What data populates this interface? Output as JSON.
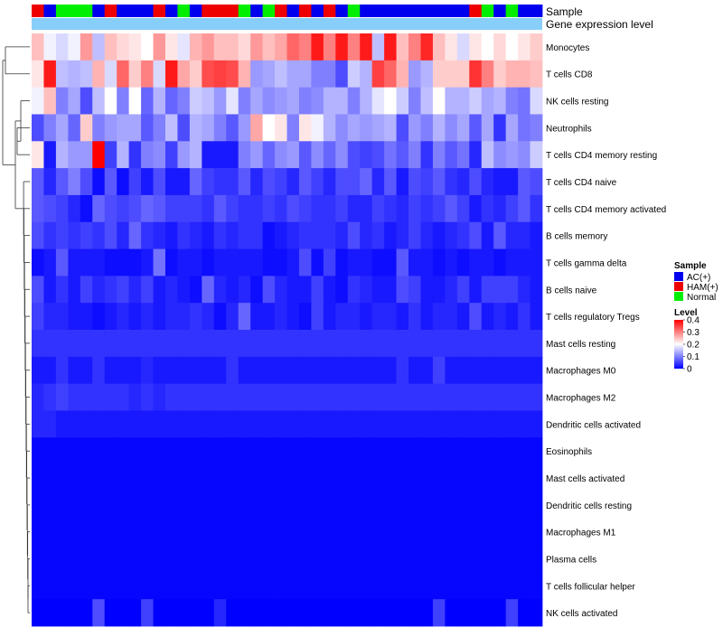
{
  "chart_data": {
    "type": "heatmap",
    "title": "",
    "annotation_labels": [
      "Sample",
      "Gene expression level"
    ],
    "gene_expression_level": "uniform",
    "samples": [
      "HAM(+)",
      "AC(+)",
      "Normal",
      "Normal",
      "Normal",
      "AC(+)",
      "HAM(+)",
      "AC(+)",
      "AC(+)",
      "AC(+)",
      "HAM(+)",
      "AC(+)",
      "Normal",
      "AC(+)",
      "HAM(+)",
      "HAM(+)",
      "HAM(+)",
      "Normal",
      "AC(+)",
      "Normal",
      "HAM(+)",
      "AC(+)",
      "HAM(+)",
      "AC(+)",
      "HAM(+)",
      "AC(+)",
      "Normal",
      "AC(+)",
      "AC(+)",
      "AC(+)",
      "AC(+)",
      "AC(+)",
      "AC(+)",
      "AC(+)",
      "AC(+)",
      "AC(+)",
      "HAM(+)",
      "Normal",
      "AC(+)",
      "Normal",
      "AC(+)",
      "AC(+)"
    ],
    "rows": [
      {
        "name": "Monocytes",
        "values": [
          0.25,
          0.19,
          0.17,
          0.19,
          0.28,
          0.15,
          0.25,
          0.23,
          0.22,
          0.2,
          0.28,
          0.22,
          0.18,
          0.26,
          0.28,
          0.25,
          0.25,
          0.23,
          0.28,
          0.25,
          0.27,
          0.32,
          0.3,
          0.38,
          0.3,
          0.38,
          0.3,
          0.38,
          0.15,
          0.38,
          0.25,
          0.3,
          0.37,
          0.25,
          0.22,
          0.17,
          0.22,
          0.2,
          0.23,
          0.2,
          0.22,
          0.24
        ]
      },
      {
        "name": "T cells CD8",
        "values": [
          0.22,
          0.38,
          0.15,
          0.14,
          0.15,
          0.26,
          0.17,
          0.32,
          0.24,
          0.3,
          0.17,
          0.38,
          0.27,
          0.24,
          0.34,
          0.35,
          0.34,
          0.26,
          0.12,
          0.13,
          0.15,
          0.13,
          0.13,
          0.1,
          0.1,
          0.06,
          0.16,
          0.14,
          0.35,
          0.32,
          0.26,
          0.12,
          0.14,
          0.24,
          0.24,
          0.24,
          0.36,
          0.3,
          0.24,
          0.26,
          0.26,
          0.25
        ]
      },
      {
        "name": "NK cells resting",
        "values": [
          0.19,
          0.25,
          0.1,
          0.13,
          0.06,
          0.15,
          0.2,
          0.1,
          0.2,
          0.08,
          0.14,
          0.08,
          0.1,
          0.16,
          0.15,
          0.12,
          0.18,
          0.1,
          0.13,
          0.11,
          0.12,
          0.13,
          0.1,
          0.11,
          0.14,
          0.14,
          0.1,
          0.14,
          0.18,
          0.2,
          0.16,
          0.1,
          0.15,
          0.2,
          0.14,
          0.14,
          0.16,
          0.13,
          0.14,
          0.1,
          0.09,
          0.17
        ]
      },
      {
        "name": "Neutrophils",
        "values": [
          0.06,
          0.1,
          0.13,
          0.08,
          0.24,
          0.1,
          0.12,
          0.13,
          0.13,
          0.07,
          0.1,
          0.15,
          0.06,
          0.14,
          0.13,
          0.1,
          0.07,
          0.12,
          0.27,
          0.2,
          0.22,
          0.1,
          0.22,
          0.19,
          0.14,
          0.11,
          0.13,
          0.12,
          0.13,
          0.14,
          0.06,
          0.12,
          0.1,
          0.14,
          0.11,
          0.13,
          0.07,
          0.13,
          0.04,
          0.13,
          0.09,
          0.1
        ]
      },
      {
        "name": "T cells CD4 memory resting",
        "values": [
          0.22,
          0.02,
          0.14,
          0.12,
          0.12,
          0.4,
          0.05,
          0.14,
          0.04,
          0.1,
          0.11,
          0.05,
          0.12,
          0.14,
          0.02,
          0.02,
          0.02,
          0.1,
          0.12,
          0.08,
          0.11,
          0.12,
          0.07,
          0.11,
          0.08,
          0.11,
          0.06,
          0.05,
          0.06,
          0.09,
          0.07,
          0.1,
          0.04,
          0.1,
          0.07,
          0.09,
          0.03,
          0.15,
          0.11,
          0.12,
          0.11,
          0.16
        ]
      },
      {
        "name": "T cells CD4 naive",
        "values": [
          0.07,
          0.03,
          0.07,
          0.1,
          0.06,
          0.01,
          0.07,
          0.01,
          0.05,
          0.02,
          0.06,
          0.02,
          0.02,
          0.08,
          0.05,
          0.04,
          0.04,
          0.07,
          0.03,
          0.06,
          0.05,
          0.03,
          0.07,
          0.05,
          0.03,
          0.06,
          0.06,
          0.08,
          0.03,
          0.07,
          0.02,
          0.06,
          0.05,
          0.07,
          0.04,
          0.03,
          0.06,
          0.03,
          0.02,
          0.02,
          0.07,
          0.06
        ]
      },
      {
        "name": "T cells CD4 memory activated",
        "values": [
          0.07,
          0.06,
          0.05,
          0.03,
          0.01,
          0.08,
          0.06,
          0.05,
          0.06,
          0.08,
          0.07,
          0.05,
          0.05,
          0.05,
          0.04,
          0.07,
          0.05,
          0.04,
          0.04,
          0.05,
          0.04,
          0.06,
          0.05,
          0.04,
          0.04,
          0.05,
          0.03,
          0.03,
          0.05,
          0.04,
          0.03,
          0.05,
          0.04,
          0.05,
          0.07,
          0.05,
          0.02,
          0.04,
          0.03,
          0.05,
          0.07,
          0.04
        ]
      },
      {
        "name": "B cells memory",
        "values": [
          0.06,
          0.04,
          0.05,
          0.04,
          0.05,
          0.04,
          0.06,
          0.03,
          0.08,
          0.04,
          0.03,
          0.02,
          0.04,
          0.03,
          0.02,
          0.04,
          0.03,
          0.04,
          0.04,
          0.01,
          0.02,
          0.03,
          0.04,
          0.04,
          0.04,
          0.03,
          0.06,
          0.03,
          0.04,
          0.02,
          0.03,
          0.05,
          0.03,
          0.02,
          0.03,
          0.04,
          0.06,
          0.02,
          0.07,
          0.03,
          0.03,
          0.02
        ]
      },
      {
        "name": "T cells gamma delta",
        "values": [
          0.01,
          0.02,
          0.07,
          0.02,
          0.02,
          0.02,
          0.01,
          0.01,
          0.01,
          0.02,
          0.09,
          0.01,
          0.02,
          0.02,
          0.01,
          0.02,
          0.02,
          0.02,
          0.02,
          0.01,
          0.01,
          0.02,
          0.06,
          0.01,
          0.05,
          0.01,
          0.02,
          0.02,
          0.01,
          0.01,
          0.07,
          0.02,
          0.02,
          0.01,
          0.02,
          0.01,
          0.02,
          0.02,
          0.01,
          0.02,
          0.02,
          0.02
        ]
      },
      {
        "name": "B cells naive",
        "values": [
          0.06,
          0.02,
          0.04,
          0.02,
          0.05,
          0.03,
          0.04,
          0.05,
          0.03,
          0.05,
          0.02,
          0.03,
          0.02,
          0.01,
          0.08,
          0.03,
          0.02,
          0.03,
          0.01,
          0.06,
          0.03,
          0.02,
          0.02,
          0.05,
          0.02,
          0.01,
          0.04,
          0.03,
          0.02,
          0.02,
          0.06,
          0.05,
          0.02,
          0.02,
          0.03,
          0.05,
          0.02,
          0.05,
          0.05,
          0.05,
          0.03,
          0.02
        ]
      },
      {
        "name": "T cells regulatory  Tregs",
        "values": [
          0.05,
          0.03,
          0.03,
          0.02,
          0.02,
          0.01,
          0.02,
          0.03,
          0.02,
          0.03,
          0.02,
          0.03,
          0.03,
          0.04,
          0.03,
          0.01,
          0.03,
          0.08,
          0.02,
          0.02,
          0.03,
          0.02,
          0.01,
          0.05,
          0.02,
          0.03,
          0.03,
          0.02,
          0.03,
          0.03,
          0.02,
          0.04,
          0.02,
          0.03,
          0.03,
          0.02,
          0.06,
          0.02,
          0.03,
          0.02,
          0.04,
          0.02
        ]
      },
      {
        "name": "Mast cells resting",
        "values": [
          0.04,
          0.04,
          0.04,
          0.04,
          0.04,
          0.04,
          0.04,
          0.04,
          0.04,
          0.04,
          0.04,
          0.04,
          0.04,
          0.04,
          0.04,
          0.04,
          0.04,
          0.04,
          0.04,
          0.04,
          0.04,
          0.04,
          0.04,
          0.04,
          0.04,
          0.04,
          0.04,
          0.04,
          0.04,
          0.04,
          0.04,
          0.04,
          0.04,
          0.04,
          0.04,
          0.04,
          0.04,
          0.04,
          0.04,
          0.04,
          0.04,
          0.04
        ]
      },
      {
        "name": "Macrophages M0",
        "values": [
          0.02,
          0.02,
          0.04,
          0.02,
          0.02,
          0.04,
          0.02,
          0.02,
          0.02,
          0.03,
          0.02,
          0.02,
          0.02,
          0.02,
          0.02,
          0.02,
          0.04,
          0.02,
          0.02,
          0.02,
          0.02,
          0.02,
          0.02,
          0.02,
          0.02,
          0.02,
          0.02,
          0.02,
          0.02,
          0.02,
          0.04,
          0.02,
          0.02,
          0.05,
          0.02,
          0.02,
          0.02,
          0.02,
          0.02,
          0.02,
          0.02,
          0.02
        ]
      },
      {
        "name": "Macrophages M2",
        "values": [
          0.03,
          0.04,
          0.05,
          0.04,
          0.04,
          0.04,
          0.04,
          0.04,
          0.03,
          0.04,
          0.03,
          0.04,
          0.04,
          0.04,
          0.04,
          0.04,
          0.04,
          0.04,
          0.04,
          0.04,
          0.04,
          0.04,
          0.04,
          0.04,
          0.04,
          0.04,
          0.04,
          0.04,
          0.04,
          0.04,
          0.04,
          0.04,
          0.04,
          0.04,
          0.04,
          0.04,
          0.04,
          0.04,
          0.04,
          0.04,
          0.04,
          0.04
        ]
      },
      {
        "name": "Dendritic cells activated",
        "values": [
          0.03,
          0.03,
          0.02,
          0.02,
          0.02,
          0.02,
          0.02,
          0.02,
          0.02,
          0.02,
          0.02,
          0.02,
          0.02,
          0.02,
          0.02,
          0.02,
          0.02,
          0.02,
          0.02,
          0.02,
          0.02,
          0.02,
          0.02,
          0.02,
          0.02,
          0.02,
          0.02,
          0.02,
          0.02,
          0.02,
          0.02,
          0.02,
          0.02,
          0.02,
          0.02,
          0.02,
          0.02,
          0.02,
          0.02,
          0.02,
          0.02,
          0.02
        ]
      },
      {
        "name": "Eosinophils",
        "values": [
          0.005,
          0.005,
          0.005,
          0.005,
          0.005,
          0.005,
          0.005,
          0.005,
          0.005,
          0.005,
          0.005,
          0.005,
          0.005,
          0.005,
          0.005,
          0.005,
          0.005,
          0.005,
          0.005,
          0.005,
          0.005,
          0.005,
          0.005,
          0.005,
          0.005,
          0.005,
          0.005,
          0.005,
          0.005,
          0.005,
          0.005,
          0.005,
          0.005,
          0.005,
          0.005,
          0.005,
          0.005,
          0.005,
          0.005,
          0.005,
          0.005,
          0.005
        ]
      },
      {
        "name": "Mast cells activated",
        "values": [
          0.005,
          0.005,
          0.005,
          0.005,
          0.005,
          0.005,
          0.005,
          0.005,
          0.005,
          0.005,
          0.005,
          0.005,
          0.005,
          0.005,
          0.005,
          0.005,
          0.005,
          0.005,
          0.005,
          0.005,
          0.005,
          0.005,
          0.005,
          0.005,
          0.005,
          0.005,
          0.005,
          0.005,
          0.005,
          0.005,
          0.005,
          0.005,
          0.005,
          0.005,
          0.005,
          0.005,
          0.005,
          0.005,
          0.005,
          0.005,
          0.005,
          0.005
        ]
      },
      {
        "name": "Dendritic cells resting",
        "values": [
          0.005,
          0.005,
          0.005,
          0.005,
          0.005,
          0.005,
          0.005,
          0.005,
          0.005,
          0.005,
          0.005,
          0.005,
          0.005,
          0.005,
          0.005,
          0.005,
          0.005,
          0.005,
          0.005,
          0.005,
          0.005,
          0.005,
          0.005,
          0.005,
          0.005,
          0.005,
          0.005,
          0.005,
          0.005,
          0.005,
          0.005,
          0.005,
          0.005,
          0.005,
          0.005,
          0.005,
          0.005,
          0.005,
          0.005,
          0.005,
          0.005,
          0.005
        ]
      },
      {
        "name": "Macrophages M1",
        "values": [
          0.005,
          0.005,
          0.005,
          0.005,
          0.005,
          0.005,
          0.005,
          0.005,
          0.005,
          0.005,
          0.005,
          0.005,
          0.005,
          0.005,
          0.005,
          0.005,
          0.005,
          0.005,
          0.005,
          0.005,
          0.005,
          0.005,
          0.005,
          0.005,
          0.005,
          0.005,
          0.005,
          0.005,
          0.005,
          0.005,
          0.005,
          0.005,
          0.005,
          0.005,
          0.005,
          0.005,
          0.005,
          0.005,
          0.005,
          0.005,
          0.005,
          0.005
        ]
      },
      {
        "name": "Plasma cells",
        "values": [
          0.005,
          0.005,
          0.005,
          0.005,
          0.005,
          0.005,
          0.005,
          0.005,
          0.005,
          0.005,
          0.005,
          0.005,
          0.005,
          0.005,
          0.005,
          0.005,
          0.005,
          0.005,
          0.005,
          0.005,
          0.005,
          0.005,
          0.005,
          0.005,
          0.005,
          0.005,
          0.005,
          0.005,
          0.005,
          0.005,
          0.005,
          0.005,
          0.005,
          0.005,
          0.005,
          0.005,
          0.005,
          0.005,
          0.005,
          0.005,
          0.005,
          0.005
        ]
      },
      {
        "name": "T cells follicular helper",
        "values": [
          0.005,
          0.005,
          0.005,
          0.005,
          0.005,
          0.005,
          0.005,
          0.005,
          0.005,
          0.005,
          0.005,
          0.005,
          0.005,
          0.005,
          0.005,
          0.005,
          0.005,
          0.005,
          0.005,
          0.005,
          0.005,
          0.005,
          0.005,
          0.005,
          0.005,
          0.005,
          0.005,
          0.005,
          0.005,
          0.005,
          0.005,
          0.005,
          0.005,
          0.005,
          0.005,
          0.005,
          0.005,
          0.005,
          0.005,
          0.005,
          0.005,
          0.005
        ]
      },
      {
        "name": "NK cells activated",
        "values": [
          0.0,
          0.0,
          0.0,
          0.0,
          0.0,
          0.06,
          0.0,
          0.0,
          0.0,
          0.05,
          0.0,
          0.0,
          0.0,
          0.0,
          0.0,
          0.03,
          0.0,
          0.0,
          0.0,
          0.0,
          0.0,
          0.0,
          0.0,
          0.0,
          0.0,
          0.0,
          0.0,
          0.0,
          0.0,
          0.0,
          0.0,
          0.0,
          0.0,
          0.05,
          0.0,
          0.0,
          0.0,
          0.0,
          0.0,
          0.05,
          0.0,
          0.0
        ]
      }
    ],
    "legend": {
      "sample_title": "Sample",
      "sample_entries": [
        {
          "label": "AC(+)",
          "color": "#0000ee"
        },
        {
          "label": "HAM(+)",
          "color": "#ee0000"
        },
        {
          "label": "Normal",
          "color": "#00ee00"
        }
      ],
      "level_title": "Level",
      "level_ticks": [
        "0.4",
        "0.3",
        "0.2",
        "0.1",
        "0"
      ],
      "level_range": [
        0,
        0.4
      ]
    },
    "colors": {
      "low": "#0000ff",
      "mid": "#ffffff",
      "high": "#ff0000",
      "gene_level": "#87cefa"
    }
  }
}
